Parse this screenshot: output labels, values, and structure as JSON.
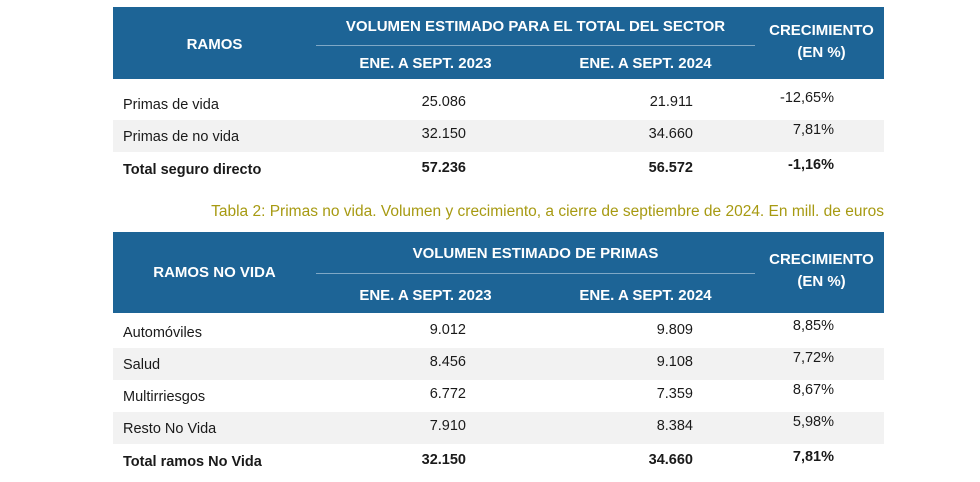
{
  "table1": {
    "header": {
      "ramos": "RAMOS",
      "volumen": "VOLUMEN ESTIMADO PARA EL TOTAL DEL SECTOR",
      "period_a": "ENE. A SEPT. 2023",
      "period_b": "ENE. A SEPT. 2024",
      "crecimiento_1": "CRECIMIENTO",
      "crecimiento_2": "(EN %)"
    },
    "rows": [
      {
        "name": "Primas de vida",
        "v2023": "25.086",
        "v2024": "21.911",
        "growth": "-12,65%"
      },
      {
        "name": "Primas de no vida",
        "v2023": "32.150",
        "v2024": "34.660",
        "growth": "7,81%"
      },
      {
        "name": "Total seguro directo",
        "v2023": "57.236",
        "v2024": "56.572",
        "growth": "-1,16%"
      }
    ]
  },
  "caption": "Tabla 2: Primas no vida. Volumen y crecimiento, a cierre de septiembre de 2024. En mill. de euros",
  "table2": {
    "header": {
      "ramos": "RAMOS NO VIDA",
      "volumen": "VOLUMEN ESTIMADO DE PRIMAS",
      "period_a": "ENE. A SEPT. 2023",
      "period_b": "ENE. A SEPT. 2024",
      "crecimiento_1": "CRECIMIENTO",
      "crecimiento_2": "(EN %)"
    },
    "rows": [
      {
        "name": "Automóviles",
        "v2023": "9.012",
        "v2024": "9.809",
        "growth": "8,85%"
      },
      {
        "name": "Salud",
        "v2023": "8.456",
        "v2024": "9.108",
        "growth": "7,72%"
      },
      {
        "name": "Multirriesgos",
        "v2023": "6.772",
        "v2024": "7.359",
        "growth": "8,67%"
      },
      {
        "name": "Resto No Vida",
        "v2023": "7.910",
        "v2024": "8.384",
        "growth": "5,98%"
      },
      {
        "name": "Total ramos No Vida",
        "v2023": "32.150",
        "v2024": "34.660",
        "growth": "7,81%"
      }
    ]
  },
  "colors": {
    "header_bg": "#1d6496",
    "caption": "#a79a12",
    "row_shade": "#f2f2f2"
  }
}
